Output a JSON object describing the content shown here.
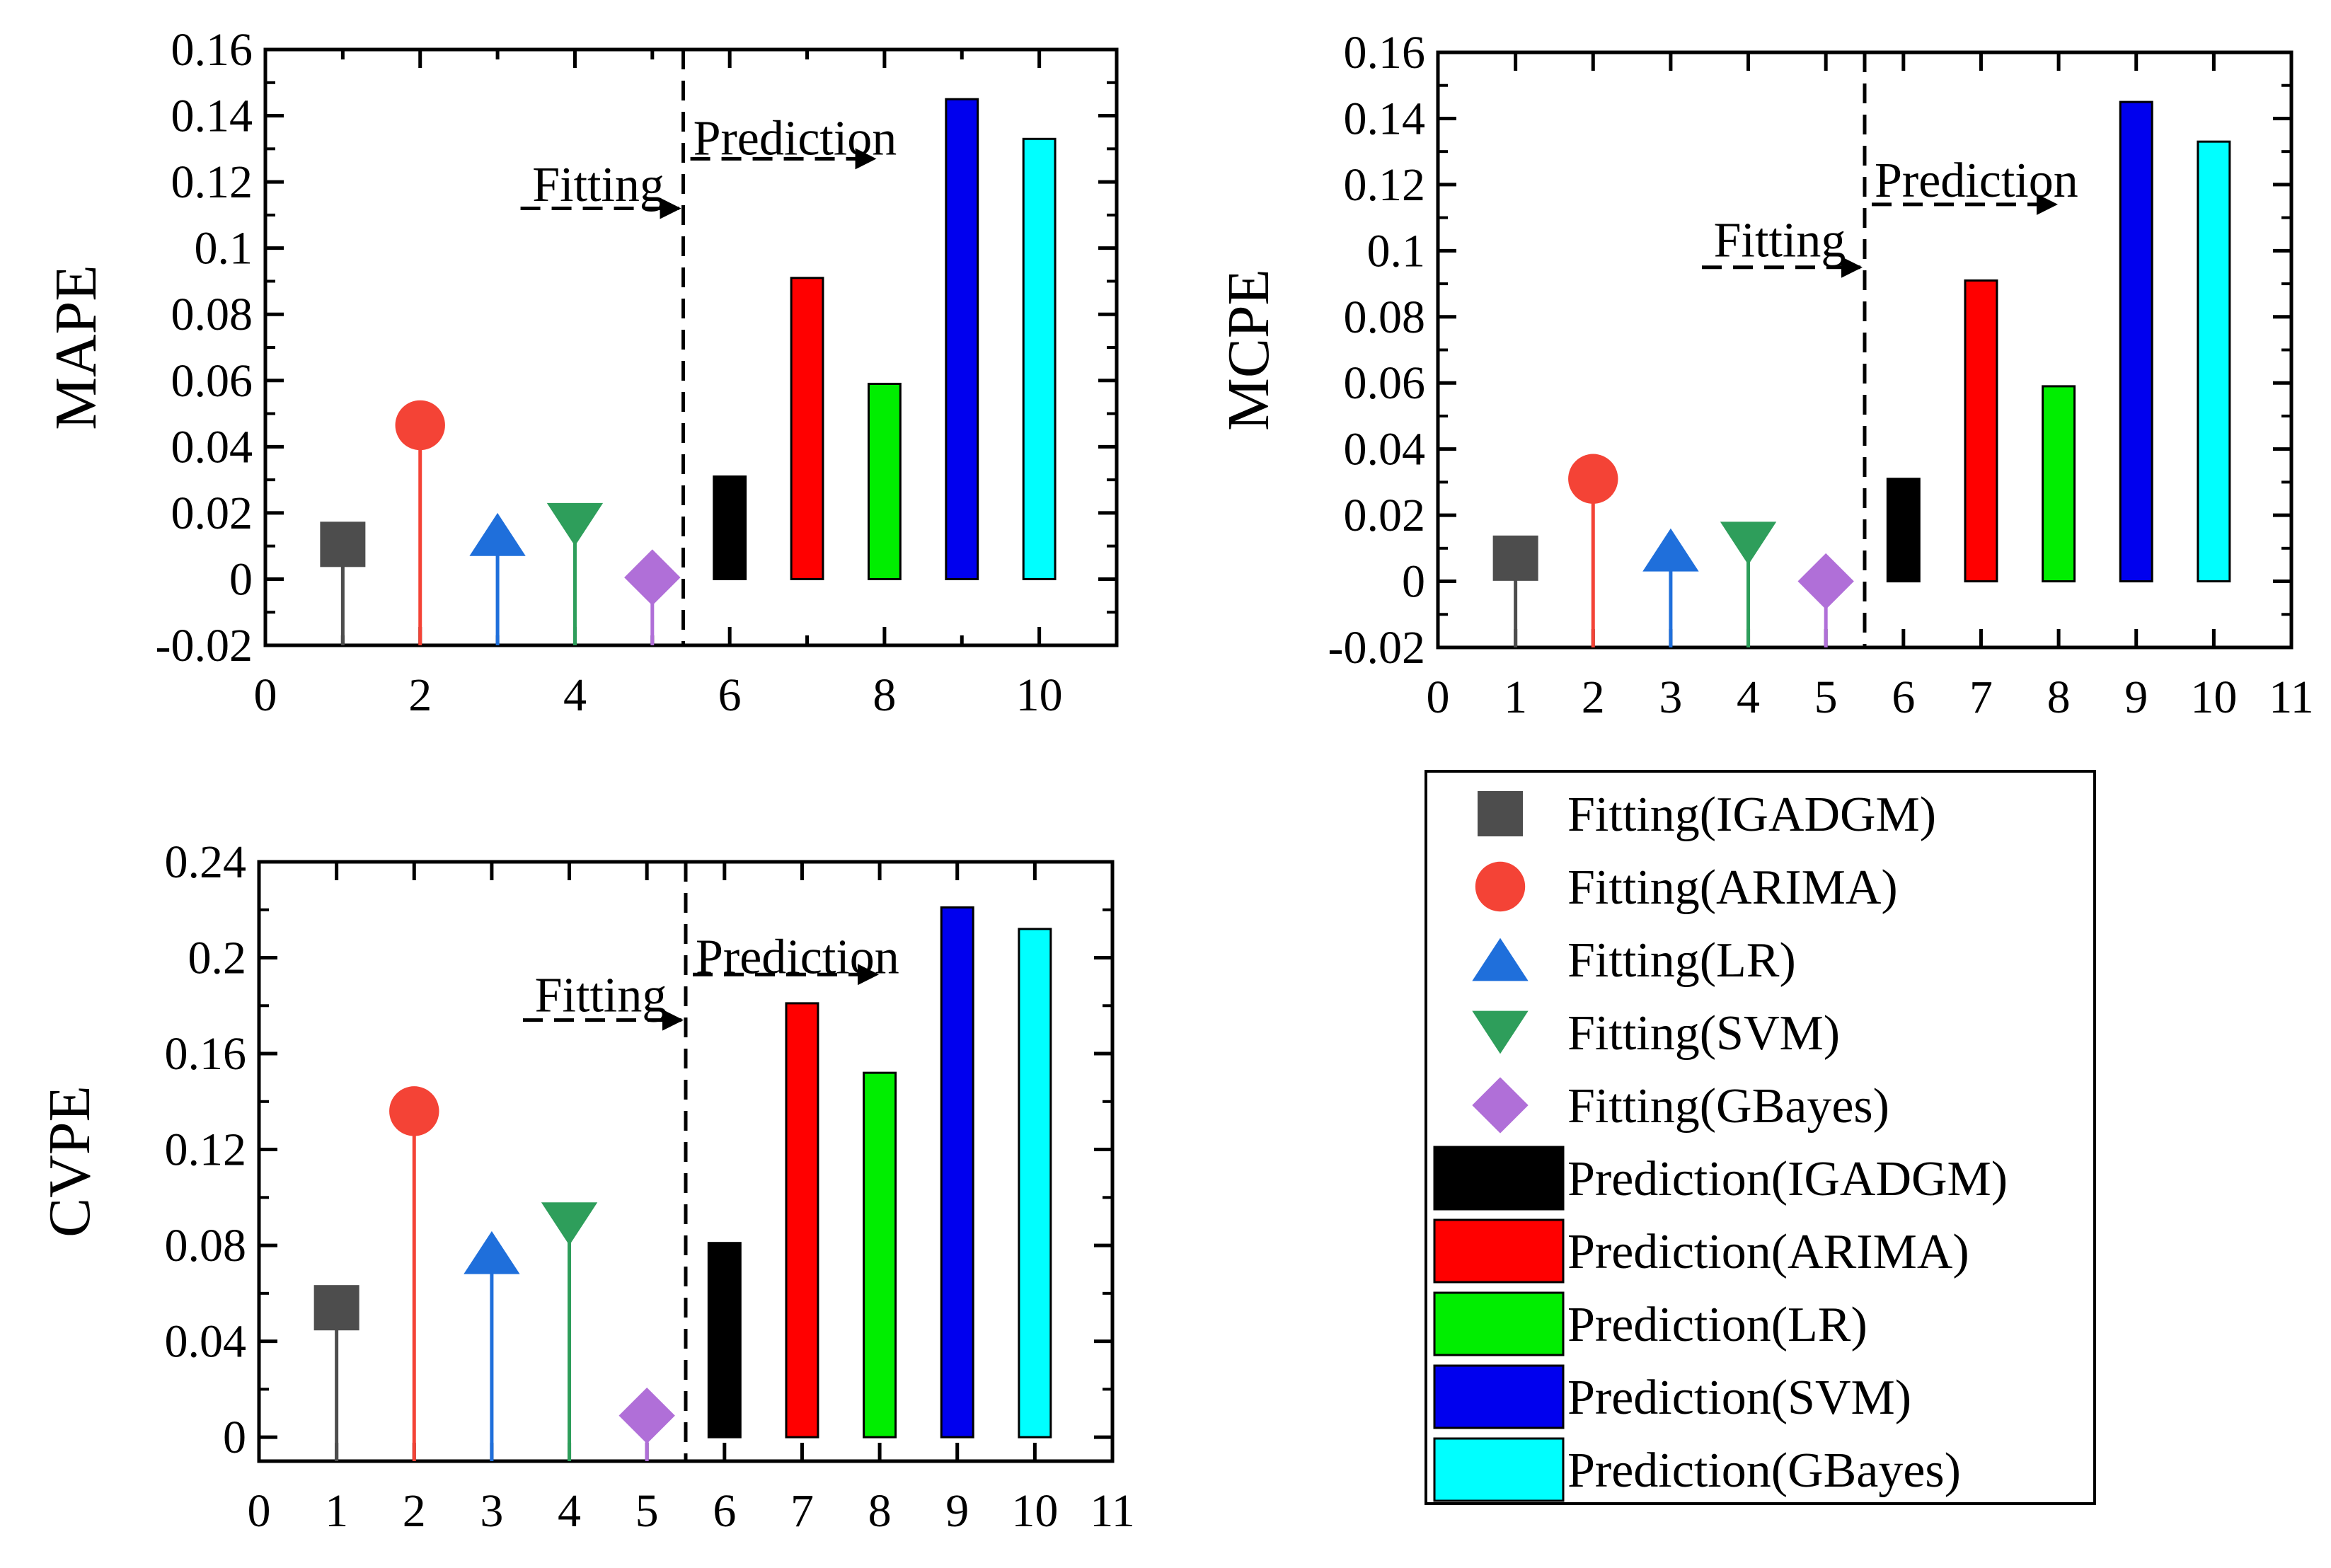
{
  "chart_data": [
    {
      "id": "mape",
      "type": "bar",
      "ylabel": "MAPE",
      "xlim": [
        0,
        11
      ],
      "ylim": [
        -0.02,
        0.16
      ],
      "xticks": [
        0,
        2,
        4,
        6,
        8,
        10
      ],
      "xtick_labels": [
        "0",
        "2",
        "4",
        "6",
        "8",
        "10"
      ],
      "yticks": [
        -0.02,
        0,
        0.02,
        0.04,
        0.06,
        0.08,
        0.1,
        0.12,
        0.14,
        0.16
      ],
      "ytick_labels": [
        "-0.02",
        "0",
        "0.02",
        "0.04",
        "0.06",
        "0.08",
        "0.1",
        "0.12",
        "0.14",
        "0.16"
      ],
      "divider_x": 5.4,
      "fitting_label": "Fitting",
      "prediction_label": "Prediction",
      "fitting_arrow_y": 0.112,
      "prediction_arrow_y": 0.127,
      "fitting_text_y": 0.119,
      "prediction_text_y": 0.133,
      "stems": [
        {
          "x": 1,
          "y": 0.0105,
          "marker": "square",
          "color": "#4d4d4d"
        },
        {
          "x": 2,
          "y": 0.0465,
          "marker": "circle",
          "color": "#f44336"
        },
        {
          "x": 3,
          "y": 0.0135,
          "marker": "triangle-up",
          "color": "#1f6fdb"
        },
        {
          "x": 4,
          "y": 0.0165,
          "marker": "triangle-down",
          "color": "#2e9e5b"
        },
        {
          "x": 5,
          "y": 0.0005,
          "marker": "diamond",
          "color": "#b06fd8"
        }
      ],
      "bars": [
        {
          "x": 6,
          "y": 0.031,
          "color": "#000000"
        },
        {
          "x": 7,
          "y": 0.091,
          "color": "#ff0000"
        },
        {
          "x": 8,
          "y": 0.059,
          "color": "#00ee00"
        },
        {
          "x": 9,
          "y": 0.145,
          "color": "#0000ee"
        },
        {
          "x": 10,
          "y": 0.133,
          "color": "#00ffff"
        }
      ]
    },
    {
      "id": "mcpe",
      "type": "bar",
      "ylabel": "MCPE",
      "xlim": [
        0,
        11
      ],
      "ylim": [
        -0.02,
        0.16
      ],
      "xticks": [
        0,
        1,
        2,
        3,
        4,
        5,
        6,
        7,
        8,
        9,
        10,
        11
      ],
      "xtick_labels": [
        "0",
        "1",
        "2",
        "3",
        "4",
        "5",
        "6",
        "7",
        "8",
        "9",
        "10",
        "11"
      ],
      "yticks": [
        -0.02,
        0,
        0.02,
        0.04,
        0.06,
        0.08,
        0.1,
        0.12,
        0.14,
        0.16
      ],
      "ytick_labels": [
        "-0.02",
        "0",
        "0.02",
        "0.04",
        "0.06",
        "0.08",
        "0.1",
        "0.12",
        "0.14",
        "0.16"
      ],
      "divider_x": 5.5,
      "fitting_label": "Fitting",
      "prediction_label": "Prediction",
      "fitting_arrow_y": 0.095,
      "prediction_arrow_y": 0.114,
      "fitting_text_y": 0.103,
      "prediction_text_y": 0.121,
      "stems": [
        {
          "x": 1,
          "y": 0.007,
          "marker": "square",
          "color": "#4d4d4d"
        },
        {
          "x": 2,
          "y": 0.031,
          "marker": "circle",
          "color": "#f44336"
        },
        {
          "x": 3,
          "y": 0.0095,
          "marker": "triangle-up",
          "color": "#1f6fdb"
        },
        {
          "x": 4,
          "y": 0.0115,
          "marker": "triangle-down",
          "color": "#2e9e5b"
        },
        {
          "x": 5,
          "y": 0.0,
          "marker": "diamond",
          "color": "#b06fd8"
        }
      ],
      "bars": [
        {
          "x": 6,
          "y": 0.031,
          "color": "#000000"
        },
        {
          "x": 7,
          "y": 0.091,
          "color": "#ff0000"
        },
        {
          "x": 8,
          "y": 0.059,
          "color": "#00ee00"
        },
        {
          "x": 9,
          "y": 0.145,
          "color": "#0000ee"
        },
        {
          "x": 10,
          "y": 0.133,
          "color": "#00ffff"
        }
      ]
    },
    {
      "id": "cvpe",
      "type": "bar",
      "ylabel": "CVPE",
      "xlim": [
        0,
        11
      ],
      "ylim": [
        -0.01,
        0.24
      ],
      "xticks": [
        0,
        1,
        2,
        3,
        4,
        5,
        6,
        7,
        8,
        9,
        10,
        11
      ],
      "xtick_labels": [
        "0",
        "1",
        "2",
        "3",
        "4",
        "5",
        "6",
        "7",
        "8",
        "9",
        "10",
        "11"
      ],
      "yticks": [
        0,
        0.04,
        0.08,
        0.12,
        0.16,
        0.2,
        0.24
      ],
      "ytick_labels": [
        "0",
        "0.04",
        "0.08",
        "0.12",
        "0.16",
        "0.2",
        "0.24"
      ],
      "divider_x": 5.5,
      "fitting_label": "Fitting",
      "prediction_label": "Prediction",
      "fitting_arrow_y": 0.174,
      "prediction_arrow_y": 0.193,
      "fitting_text_y": 0.184,
      "prediction_text_y": 0.2,
      "stems": [
        {
          "x": 1,
          "y": 0.054,
          "marker": "square",
          "color": "#4d4d4d"
        },
        {
          "x": 2,
          "y": 0.136,
          "marker": "circle",
          "color": "#f44336"
        },
        {
          "x": 3,
          "y": 0.077,
          "marker": "triangle-up",
          "color": "#1f6fdb"
        },
        {
          "x": 4,
          "y": 0.089,
          "marker": "triangle-down",
          "color": "#2e9e5b"
        },
        {
          "x": 5,
          "y": 0.009,
          "marker": "diamond",
          "color": "#b06fd8"
        }
      ],
      "bars": [
        {
          "x": 6,
          "y": 0.081,
          "color": "#000000"
        },
        {
          "x": 7,
          "y": 0.181,
          "color": "#ff0000"
        },
        {
          "x": 8,
          "y": 0.152,
          "color": "#00ee00"
        },
        {
          "x": 9,
          "y": 0.221,
          "color": "#0000ee"
        },
        {
          "x": 10,
          "y": 0.212,
          "color": "#00ffff"
        }
      ]
    }
  ],
  "legend": [
    {
      "label": "Fitting(IGADGM)",
      "kind": "marker",
      "marker": "square",
      "color": "#4d4d4d"
    },
    {
      "label": "Fitting(ARIMA)",
      "kind": "marker",
      "marker": "circle",
      "color": "#f44336"
    },
    {
      "label": "Fitting(LR)",
      "kind": "marker",
      "marker": "triangle-up",
      "color": "#1f6fdb"
    },
    {
      "label": "Fitting(SVM)",
      "kind": "marker",
      "marker": "triangle-down",
      "color": "#2e9e5b"
    },
    {
      "label": "Fitting(GBayes)",
      "kind": "marker",
      "marker": "diamond",
      "color": "#b06fd8"
    },
    {
      "label": "Prediction(IGADGM)",
      "kind": "box",
      "color": "#000000"
    },
    {
      "label": "Prediction(ARIMA)",
      "kind": "box",
      "color": "#ff0000"
    },
    {
      "label": "Prediction(LR)",
      "kind": "box",
      "color": "#00ee00"
    },
    {
      "label": "Prediction(SVM)",
      "kind": "box",
      "color": "#0000ee"
    },
    {
      "label": "Prediction(GBayes)",
      "kind": "box",
      "color": "#00ffff"
    }
  ]
}
